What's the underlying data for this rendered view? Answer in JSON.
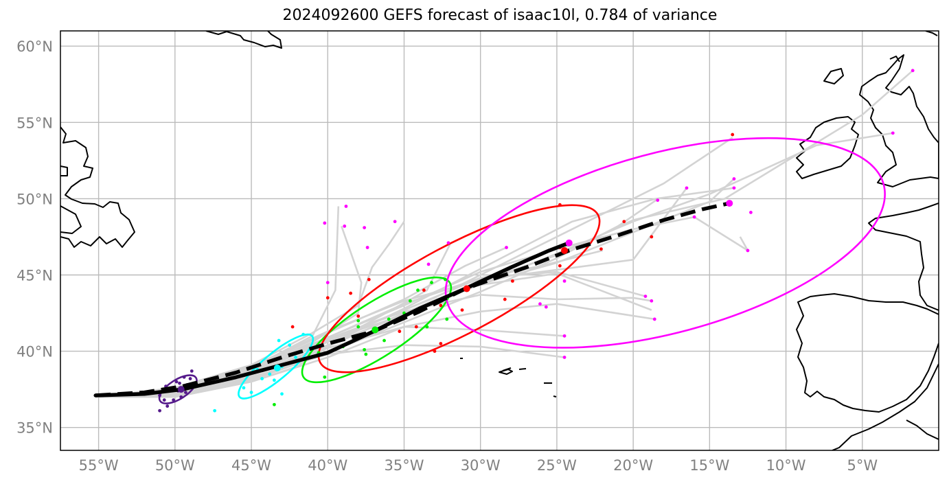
{
  "title": "2024092600 GEFS forecast of isaac10l, 0.784 of variance",
  "axes": {
    "lon_range": [
      -57.5,
      0.0
    ],
    "lat_range": [
      33.5,
      61.0
    ],
    "lon_ticks": [
      {
        "value": -55,
        "label": "55°W"
      },
      {
        "value": -50,
        "label": "50°W"
      },
      {
        "value": -45,
        "label": "45°W"
      },
      {
        "value": -40,
        "label": "40°W"
      },
      {
        "value": -35,
        "label": "35°W"
      },
      {
        "value": -30,
        "label": "30°W"
      },
      {
        "value": -25,
        "label": "25°W"
      },
      {
        "value": -20,
        "label": "20°W"
      },
      {
        "value": -15,
        "label": "15°W"
      },
      {
        "value": -10,
        "label": "10°W"
      },
      {
        "value": -5,
        "label": "5°W"
      }
    ],
    "lat_ticks": [
      {
        "value": 35,
        "label": "35°N"
      },
      {
        "value": 40,
        "label": "40°N"
      },
      {
        "value": 45,
        "label": "45°N"
      },
      {
        "value": 50,
        "label": "50°N"
      },
      {
        "value": 55,
        "label": "55°N"
      },
      {
        "value": 60,
        "label": "60°N"
      }
    ]
  },
  "colors": {
    "grid": "#bbbbbb",
    "member_track": "#d3d3d3",
    "coast": "#000000",
    "lead1": "#551a8b",
    "lead2": "#00ffff",
    "lead3": "#00ee00",
    "lead4": "#ff0000",
    "lead5": "#ff00ff"
  },
  "chart_data": {
    "type": "scatter",
    "mean_track": [
      [
        -55.2,
        37.1
      ],
      [
        -52,
        37.2
      ],
      [
        -49.5,
        37.5
      ],
      [
        -46,
        38.3
      ],
      [
        -43,
        39.1
      ],
      [
        -40,
        39.9
      ],
      [
        -37,
        41.3
      ],
      [
        -34,
        42.8
      ],
      [
        -31,
        44.1
      ],
      [
        -28,
        45.5
      ],
      [
        -25.5,
        46.6
      ],
      [
        -24.2,
        47.1
      ]
    ],
    "control_track": [
      [
        -55.2,
        37.1
      ],
      [
        -52,
        37.3
      ],
      [
        -49.5,
        37.7
      ],
      [
        -46,
        38.6
      ],
      [
        -43,
        39.6
      ],
      [
        -40,
        40.5
      ],
      [
        -37,
        41.3
      ],
      [
        -34,
        42.6
      ],
      [
        -31,
        44.1
      ],
      [
        -27,
        45.5
      ],
      [
        -24.2,
        46.6
      ],
      [
        -21,
        47.6
      ],
      [
        -18,
        48.6
      ],
      [
        -15.5,
        49.3
      ],
      [
        -13.7,
        49.7
      ]
    ],
    "member_tracks": [
      [
        [
          -55,
          37.0
        ],
        [
          -50,
          37.2
        ],
        [
          -45,
          38.6
        ],
        [
          -40,
          40.8
        ],
        [
          -36,
          42.3
        ],
        [
          -33,
          43.5
        ],
        [
          -30,
          45
        ],
        [
          -25,
          47.5
        ],
        [
          -18,
          51
        ],
        [
          -13.5,
          54
        ]
      ],
      [
        [
          -55,
          37.0
        ],
        [
          -50,
          37.4
        ],
        [
          -45,
          38.8
        ],
        [
          -41,
          40.6
        ],
        [
          -38,
          42.5
        ],
        [
          -37.8,
          44.5
        ],
        [
          -38.5,
          46.5
        ],
        [
          -39.1,
          48.2
        ]
      ],
      [
        [
          -55,
          37.0
        ],
        [
          -50,
          37.3
        ],
        [
          -45,
          38.9
        ],
        [
          -41,
          41
        ],
        [
          -39.5,
          44
        ],
        [
          -39.3,
          49.5
        ]
      ],
      [
        [
          -55,
          37.0
        ],
        [
          -50,
          37.6
        ],
        [
          -45,
          39.1
        ],
        [
          -41,
          41.2
        ],
        [
          -38,
          43
        ],
        [
          -37.1,
          45.5
        ],
        [
          -36,
          47
        ],
        [
          -35,
          48.5
        ]
      ],
      [
        [
          -55,
          37.0
        ],
        [
          -50,
          37.1
        ],
        [
          -45,
          38.2
        ],
        [
          -40,
          40
        ],
        [
          -35,
          42.3
        ],
        [
          -30,
          44.4
        ],
        [
          -25,
          45.8
        ],
        [
          -20,
          47.8
        ],
        [
          -15,
          49.8
        ],
        [
          -13.4,
          51.3
        ]
      ],
      [
        [
          -55,
          37.0
        ],
        [
          -50,
          37.2
        ],
        [
          -45,
          38.5
        ],
        [
          -40,
          40.4
        ],
        [
          -35,
          42.8
        ],
        [
          -30,
          45.4
        ],
        [
          -24,
          48.5
        ],
        [
          -18.5,
          50
        ],
        [
          -13.4,
          50.7
        ]
      ],
      [
        [
          -55,
          37.0
        ],
        [
          -50,
          37.4
        ],
        [
          -45,
          38.7
        ],
        [
          -40,
          40.8
        ],
        [
          -35,
          42.6
        ],
        [
          -30,
          43.7
        ],
        [
          -25,
          43.4
        ],
        [
          -20,
          43.5
        ],
        [
          -18.8,
          43.3
        ]
      ],
      [
        [
          -55,
          37.0
        ],
        [
          -50,
          37.0
        ],
        [
          -45,
          38.0
        ],
        [
          -40,
          39.6
        ],
        [
          -35,
          41.6
        ],
        [
          -30,
          42.6
        ],
        [
          -25,
          43.1
        ],
        [
          -18.6,
          42.1
        ]
      ],
      [
        [
          -55,
          37.0
        ],
        [
          -50,
          37.2
        ],
        [
          -45,
          38.6
        ],
        [
          -40,
          40.6
        ],
        [
          -35,
          42.7
        ],
        [
          -30,
          44.8
        ],
        [
          -26,
          45.6
        ],
        [
          -22,
          46.6
        ]
      ],
      [
        [
          -55,
          37.0
        ],
        [
          -50,
          37.3
        ],
        [
          -45,
          38.4
        ],
        [
          -40,
          40.2
        ],
        [
          -35,
          41.6
        ],
        [
          -30,
          41.4
        ],
        [
          -24.5,
          41
        ]
      ],
      [
        [
          -55,
          37.0
        ],
        [
          -50,
          37.1
        ],
        [
          -45,
          38.3
        ],
        [
          -40,
          39.8
        ],
        [
          -35,
          40.4
        ],
        [
          -30,
          40.3
        ],
        [
          -24.5,
          39.6
        ]
      ],
      [
        [
          -55,
          37.0
        ],
        [
          -50,
          37.5
        ],
        [
          -45,
          38.9
        ],
        [
          -40,
          41.2
        ],
        [
          -35,
          43.4
        ],
        [
          -31,
          45.6
        ],
        [
          -28.3,
          46.8
        ]
      ],
      [
        [
          -55,
          37.0
        ],
        [
          -50,
          37.0
        ],
        [
          -45,
          38.0
        ],
        [
          -42,
          39
        ],
        [
          -38,
          41.5
        ],
        [
          -33.5,
          44
        ],
        [
          -32,
          47
        ]
      ],
      [
        [
          -55,
          37.0
        ],
        [
          -50,
          37.2
        ],
        [
          -45,
          38.7
        ],
        [
          -40,
          40.9
        ],
        [
          -35,
          43
        ],
        [
          -30,
          45.2
        ],
        [
          -25,
          46.7
        ],
        [
          -20,
          48
        ],
        [
          -16,
          48.8
        ],
        [
          -12.5,
          46.6
        ],
        [
          -13,
          47.5
        ]
      ],
      [
        [
          -55,
          37.0
        ],
        [
          -50,
          37.3
        ],
        [
          -45,
          38.5
        ],
        [
          -40,
          40.4
        ],
        [
          -35,
          42.4
        ],
        [
          -30,
          44.4
        ],
        [
          -25,
          46.4
        ],
        [
          -20,
          48.5
        ],
        [
          -15,
          50.3
        ],
        [
          -8,
          53.5
        ],
        [
          -3,
          54.3
        ]
      ],
      [
        [
          -55,
          37.0
        ],
        [
          -50,
          37.4
        ],
        [
          -45,
          38.8
        ],
        [
          -40,
          40.9
        ],
        [
          -35,
          43.1
        ],
        [
          -30,
          44.8
        ],
        [
          -25,
          45.2
        ],
        [
          -19.2,
          43.6
        ]
      ],
      [
        [
          -55,
          37.0
        ],
        [
          -50,
          37.1
        ],
        [
          -45,
          38.1
        ],
        [
          -40,
          39.9
        ],
        [
          -35,
          41.9
        ],
        [
          -30,
          43.9
        ],
        [
          -25,
          46.1
        ],
        [
          -21,
          48.2
        ],
        [
          -18.5,
          49.9
        ]
      ],
      [
        [
          -55,
          37.0
        ],
        [
          -50,
          37.2
        ],
        [
          -45,
          38.4
        ],
        [
          -40,
          40.3
        ],
        [
          -35,
          42.5
        ],
        [
          -30,
          44.6
        ],
        [
          -25,
          46.3
        ],
        [
          -20,
          48.6
        ],
        [
          -14,
          50
        ],
        [
          -5,
          55.5
        ],
        [
          -1.7,
          58.4
        ]
      ],
      [
        [
          -55,
          37.0
        ],
        [
          -50,
          37.3
        ],
        [
          -45,
          38.7
        ],
        [
          -40,
          40.7
        ],
        [
          -35,
          42.4
        ],
        [
          -31,
          44.2
        ],
        [
          -25,
          45.1
        ],
        [
          -18.8,
          42.7
        ]
      ],
      [
        [
          -55,
          37.0
        ],
        [
          -50,
          37.5
        ],
        [
          -45,
          39
        ],
        [
          -40,
          41.3
        ],
        [
          -35,
          43.3
        ],
        [
          -30,
          44.7
        ],
        [
          -24.5,
          45.4
        ],
        [
          -20,
          46
        ],
        [
          -16.5,
          50.7
        ]
      ]
    ],
    "lead_times": [
      {
        "name": "lead1",
        "color": "#551a8b",
        "ellipse": {
          "lon": -49.8,
          "lat": 37.5,
          "a": 1.4,
          "b": 0.62,
          "angle": 33
        },
        "points": [
          [
            -51,
            36.1
          ],
          [
            -50.5,
            36.4
          ],
          [
            -51,
            37.1
          ],
          [
            -50.6,
            37.7
          ],
          [
            -49.8,
            37.4
          ],
          [
            -49.5,
            37.6
          ],
          [
            -49.2,
            37.8
          ],
          [
            -49,
            38.2
          ],
          [
            -48.9,
            38.7
          ],
          [
            -49.6,
            37
          ],
          [
            -50.1,
            36.8
          ],
          [
            -50.4,
            37.4
          ],
          [
            -49.9,
            38
          ],
          [
            -49.4,
            38.3
          ],
          [
            -50.7,
            36.8
          ],
          [
            -49.7,
            37.9
          ],
          [
            -50.2,
            37.6
          ],
          [
            -49.3,
            37.3
          ]
        ],
        "mean": [
          -49.6,
          37.5
        ]
      },
      {
        "name": "lead2",
        "color": "#00ffff",
        "ellipse": {
          "lon": -43.4,
          "lat": 39.0,
          "a": 3.1,
          "b": 0.85,
          "angle": 40
        },
        "points": [
          [
            -45.5,
            37.6
          ],
          [
            -45,
            37.3
          ],
          [
            -43,
            37.2
          ],
          [
            -44.3,
            38.2
          ],
          [
            -43.8,
            38.5
          ],
          [
            -43,
            39
          ],
          [
            -42.5,
            40.4
          ],
          [
            -43.2,
            40.7
          ],
          [
            -41.6,
            41.1
          ],
          [
            -44.6,
            38.8
          ],
          [
            -42.1,
            39.6
          ],
          [
            -47.4,
            36.1
          ],
          [
            -43.5,
            38.1
          ]
        ],
        "mean": [
          -43.3,
          38.9
        ]
      },
      {
        "name": "lead3",
        "color": "#00ee00",
        "ellipse": {
          "lon": -36.8,
          "lat": 41.4,
          "a": 5.7,
          "b": 1.75,
          "angle": 33
        },
        "points": [
          [
            -40.2,
            38.3
          ],
          [
            -43.5,
            36.5
          ],
          [
            -38,
            41.6
          ],
          [
            -37.6,
            40.1
          ],
          [
            -37.5,
            39.8
          ],
          [
            -36.3,
            40.7
          ],
          [
            -35.8,
            41.9
          ],
          [
            -35,
            42.5
          ],
          [
            -34.6,
            43.3
          ],
          [
            -34.1,
            44
          ],
          [
            -33.2,
            44.5
          ],
          [
            -32.3,
            44.7
          ],
          [
            -32.2,
            42.1
          ],
          [
            -33.5,
            41.6
          ],
          [
            -38,
            42
          ],
          [
            -39,
            40.3
          ],
          [
            -40.6,
            39.9
          ],
          [
            -36,
            42.1
          ]
        ],
        "mean": [
          -36.9,
          41.4
        ]
      },
      {
        "name": "lead4",
        "color": "#ff0000",
        "ellipse": {
          "lon": -31.4,
          "lat": 44.1,
          "a": 10.3,
          "b": 2.9,
          "angle": 28
        },
        "points": [
          [
            -37.3,
            44.7
          ],
          [
            -38.5,
            43.8
          ],
          [
            -40,
            43.5
          ],
          [
            -35.3,
            41.3
          ],
          [
            -34.2,
            41.6
          ],
          [
            -33,
            40
          ],
          [
            -32.6,
            40.5
          ],
          [
            -33.7,
            44
          ],
          [
            -32.6,
            43
          ],
          [
            -31.2,
            42.7
          ],
          [
            -28.4,
            43.4
          ],
          [
            -27.9,
            44.6
          ],
          [
            -24.8,
            45.6
          ],
          [
            -24.8,
            46.8
          ],
          [
            -24.8,
            49.6
          ],
          [
            -22.1,
            46.7
          ],
          [
            -20.6,
            48.5
          ],
          [
            -18.8,
            47.5
          ],
          [
            -13.5,
            54.2
          ],
          [
            -42.3,
            41.6
          ],
          [
            -38,
            42.3
          ]
        ],
        "mean": [
          -30.9,
          44.1
        ]
      },
      {
        "name": "lead5",
        "color": "#ff00ff",
        "ellipse": {
          "lon": -17.9,
          "lat": 47.1,
          "a": 14.8,
          "b": 5.9,
          "angle": 15
        },
        "points": [
          [
            -38.8,
            49.5
          ],
          [
            -38.9,
            48.2
          ],
          [
            -37.6,
            48.1
          ],
          [
            -37.4,
            46.8
          ],
          [
            -40.2,
            48.4
          ],
          [
            -35.6,
            48.5
          ],
          [
            -33.4,
            45.7
          ],
          [
            -32.1,
            47.1
          ],
          [
            -40,
            44.5
          ],
          [
            -28.3,
            46.8
          ],
          [
            -26.1,
            43.1
          ],
          [
            -25.7,
            42.9
          ],
          [
            -24.5,
            44.6
          ],
          [
            -24.5,
            41
          ],
          [
            -24.5,
            39.6
          ],
          [
            -19.2,
            43.6
          ],
          [
            -18.8,
            43.3
          ],
          [
            -18.6,
            42.1
          ],
          [
            -18.4,
            49.9
          ],
          [
            -16.5,
            50.7
          ],
          [
            -16,
            48.8
          ],
          [
            -13.4,
            51.3
          ],
          [
            -13.4,
            50.7
          ],
          [
            -12.3,
            49.1
          ],
          [
            -12.5,
            46.6
          ],
          [
            -3,
            54.3
          ],
          [
            -1.7,
            58.4
          ]
        ],
        "mean": [
          -13.7,
          49.7
        ]
      }
    ],
    "extra_mean_markers": [
      {
        "lon": -24.2,
        "lat": 47.1,
        "color": "#ff00ff"
      },
      {
        "lon": -24.5,
        "lat": 46.6,
        "color": "#ff0000"
      }
    ]
  }
}
